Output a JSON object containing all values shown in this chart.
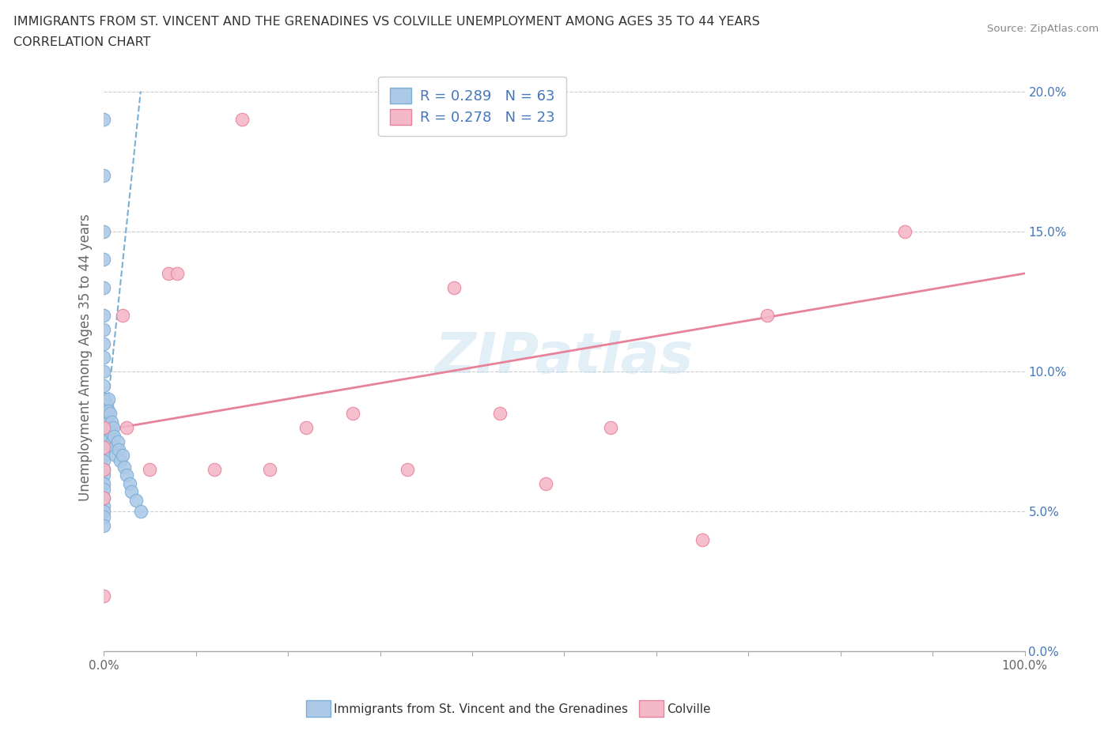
{
  "title_line1": "IMMIGRANTS FROM ST. VINCENT AND THE GRENADINES VS COLVILLE UNEMPLOYMENT AMONG AGES 35 TO 44 YEARS",
  "title_line2": "CORRELATION CHART",
  "source_text": "Source: ZipAtlas.com",
  "ylabel": "Unemployment Among Ages 35 to 44 years",
  "xmin": 0.0,
  "xmax": 1.0,
  "ymin": 0.0,
  "ymax": 0.21,
  "yticks": [
    0.0,
    0.05,
    0.1,
    0.15,
    0.2
  ],
  "ytick_labels": [
    "0.0%",
    "5.0%",
    "10.0%",
    "15.0%",
    "20.0%"
  ],
  "xticks": [
    0.0,
    0.1,
    0.2,
    0.3,
    0.4,
    0.5,
    0.6,
    0.7,
    0.8,
    0.9,
    1.0
  ],
  "xtick_labels": [
    "0.0%",
    "",
    "",
    "",
    "",
    "",
    "",
    "",
    "",
    "",
    "100.0%"
  ],
  "blue_R": 0.289,
  "blue_N": 63,
  "pink_R": 0.278,
  "pink_N": 23,
  "blue_color": "#adc9e8",
  "pink_color": "#f5b8c8",
  "blue_edge_color": "#7aafd4",
  "pink_edge_color": "#e8829a",
  "legend_label_blue": "Immigrants from St. Vincent and the Grenadines",
  "legend_label_pink": "Colville",
  "blue_scatter_x": [
    0.0,
    0.0,
    0.0,
    0.0,
    0.0,
    0.0,
    0.0,
    0.0,
    0.0,
    0.0,
    0.0,
    0.0,
    0.0,
    0.0,
    0.0,
    0.0,
    0.0,
    0.0,
    0.0,
    0.0,
    0.0,
    0.0,
    0.0,
    0.0,
    0.0,
    0.0,
    0.0,
    0.0,
    0.0,
    0.0,
    0.001,
    0.001,
    0.002,
    0.002,
    0.002,
    0.003,
    0.003,
    0.003,
    0.004,
    0.004,
    0.005,
    0.005,
    0.005,
    0.006,
    0.006,
    0.007,
    0.008,
    0.008,
    0.009,
    0.01,
    0.011,
    0.012,
    0.013,
    0.015,
    0.016,
    0.018,
    0.02,
    0.022,
    0.025,
    0.028,
    0.03,
    0.035,
    0.04
  ],
  "blue_scatter_y": [
    0.19,
    0.17,
    0.15,
    0.14,
    0.13,
    0.12,
    0.115,
    0.11,
    0.105,
    0.1,
    0.095,
    0.09,
    0.088,
    0.085,
    0.082,
    0.08,
    0.078,
    0.075,
    0.072,
    0.07,
    0.068,
    0.065,
    0.063,
    0.06,
    0.058,
    0.055,
    0.052,
    0.05,
    0.048,
    0.045,
    0.09,
    0.085,
    0.082,
    0.078,
    0.075,
    0.088,
    0.083,
    0.078,
    0.085,
    0.08,
    0.09,
    0.086,
    0.082,
    0.08,
    0.076,
    0.085,
    0.082,
    0.078,
    0.075,
    0.08,
    0.077,
    0.073,
    0.07,
    0.075,
    0.072,
    0.068,
    0.07,
    0.066,
    0.063,
    0.06,
    0.057,
    0.054,
    0.05
  ],
  "pink_scatter_x": [
    0.0,
    0.0,
    0.0,
    0.0,
    0.0,
    0.02,
    0.025,
    0.05,
    0.07,
    0.08,
    0.12,
    0.15,
    0.18,
    0.22,
    0.27,
    0.33,
    0.38,
    0.43,
    0.48,
    0.55,
    0.65,
    0.72,
    0.87
  ],
  "pink_scatter_y": [
    0.08,
    0.073,
    0.065,
    0.055,
    0.02,
    0.12,
    0.08,
    0.065,
    0.135,
    0.135,
    0.065,
    0.19,
    0.065,
    0.08,
    0.085,
    0.065,
    0.13,
    0.085,
    0.06,
    0.08,
    0.04,
    0.12,
    0.15
  ],
  "blue_trendline_x": [
    0.0,
    0.04
  ],
  "blue_trendline_y": [
    0.075,
    0.2
  ],
  "pink_trendline_x": [
    0.0,
    1.0
  ],
  "pink_trendline_y": [
    0.079,
    0.135
  ],
  "watermark_text": "ZIPatlas",
  "grid_color": "#cccccc",
  "background_color": "#ffffff",
  "text_color": "#333333",
  "label_color": "#4477bb",
  "tick_color": "#666666"
}
